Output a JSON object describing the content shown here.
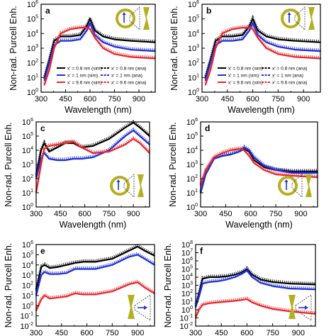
{
  "figure": {
    "ylabel": "Non-rad. Purcell Enh.",
    "xlabel": "Wavelength (nm)"
  },
  "legend": [
    {
      "label": "x' = 0.8 nm (sim)",
      "color": "#000000",
      "style": "solid"
    },
    {
      "label": "x' = 0.8 nm (ana)",
      "color": "#000000",
      "style": "dashed"
    },
    {
      "label": "x' = 1 nm (sim)",
      "color": "#1f2fd8",
      "style": "solid"
    },
    {
      "label": "x' = 1 nm (ana)",
      "color": "#1f2fd8",
      "style": "dashed"
    },
    {
      "label": "x' = 9.6 nm (sim)",
      "color": "#e8262b",
      "style": "solid"
    },
    {
      "label": "x' = 9.6 nm (ana)",
      "color": "#e8262b",
      "style": "dashed"
    }
  ],
  "chart_data": [
    {
      "panel": "a",
      "type": "line",
      "x_ticks": [
        300,
        450,
        600,
        750,
        900
      ],
      "xlim": [
        300,
        1000
      ],
      "y_tick_exponents": [
        0,
        1,
        2,
        3,
        4,
        5,
        6
      ],
      "ylim_exp": [
        0,
        6
      ],
      "yscale": "log",
      "icon": "ring-bowtie",
      "series": [
        {
          "name": "x' = 0.8 nm",
          "color": "#000000",
          "x": [
            320,
            350,
            380,
            420,
            480,
            540,
            580,
            600,
            630,
            680,
            750,
            850,
            1000
          ],
          "log_y": [
            1.0,
            2.2,
            3.5,
            3.8,
            3.8,
            3.9,
            4.5,
            5.0,
            4.2,
            3.8,
            3.6,
            3.5,
            3.4
          ]
        },
        {
          "name": "x' = 1 nm",
          "color": "#1f2fd8",
          "x": [
            320,
            350,
            380,
            420,
            480,
            540,
            580,
            600,
            630,
            680,
            750,
            850,
            1000
          ],
          "log_y": [
            0.8,
            2.0,
            3.2,
            3.5,
            3.5,
            3.6,
            4.2,
            4.7,
            3.9,
            3.4,
            3.1,
            2.9,
            2.8
          ]
        },
        {
          "name": "x' = 9.6 nm",
          "color": "#e8262b",
          "x": [
            320,
            350,
            380,
            420,
            480,
            540,
            580,
            600,
            630,
            680,
            750,
            850,
            1000
          ],
          "log_y": [
            0.5,
            1.5,
            3.0,
            4.0,
            4.3,
            4.4,
            4.4,
            4.3,
            3.7,
            3.0,
            2.6,
            2.4,
            2.3
          ]
        }
      ]
    },
    {
      "panel": "b",
      "type": "line",
      "x_ticks": [
        300,
        450,
        600,
        750,
        900
      ],
      "xlim": [
        300,
        1000
      ],
      "y_tick_exponents": [
        0,
        1,
        2,
        3,
        4,
        5,
        6
      ],
      "ylim_exp": [
        0,
        6
      ],
      "yscale": "log",
      "icon": "ring-bowtie",
      "series": [
        {
          "name": "x' = 0.8 nm",
          "color": "#000000",
          "x": [
            320,
            350,
            380,
            420,
            480,
            540,
            580,
            600,
            630,
            680,
            750,
            850,
            1000
          ],
          "log_y": [
            1.0,
            2.2,
            3.5,
            3.8,
            3.8,
            3.9,
            4.5,
            5.0,
            4.2,
            3.8,
            3.6,
            3.5,
            3.4
          ]
        },
        {
          "name": "x' = 1 nm",
          "color": "#1f2fd8",
          "x": [
            320,
            350,
            380,
            420,
            480,
            540,
            580,
            600,
            630,
            680,
            750,
            850,
            1000
          ],
          "log_y": [
            0.8,
            2.0,
            3.2,
            3.5,
            3.5,
            3.6,
            4.2,
            4.7,
            3.9,
            3.4,
            3.1,
            2.9,
            2.8
          ]
        },
        {
          "name": "x' = 9.6 nm",
          "color": "#e8262b",
          "x": [
            320,
            350,
            380,
            420,
            480,
            540,
            580,
            600,
            630,
            680,
            750,
            850,
            1000
          ],
          "log_y": [
            0.5,
            1.5,
            3.0,
            4.0,
            4.3,
            4.4,
            4.4,
            4.3,
            3.7,
            3.0,
            2.6,
            2.4,
            2.3
          ]
        }
      ]
    },
    {
      "panel": "c",
      "type": "line",
      "x_ticks": [
        300,
        450,
        600,
        750,
        900
      ],
      "xlim": [
        300,
        1000
      ],
      "y_tick_exponents": [
        0,
        1,
        2,
        3,
        4,
        5,
        6
      ],
      "ylim_exp": [
        0,
        6
      ],
      "yscale": "log",
      "icon": "ring-bowtie",
      "series": [
        {
          "name": "x' = 0.8 nm",
          "color": "#000000",
          "x": [
            300,
            330,
            350,
            380,
            430,
            480,
            530,
            580,
            650,
            750,
            850,
            900,
            940,
            1000
          ],
          "log_y": [
            2.2,
            4.0,
            4.5,
            3.9,
            4.2,
            4.5,
            4.5,
            4.2,
            4.3,
            4.8,
            5.6,
            6.0,
            5.6,
            5.0
          ]
        },
        {
          "name": "x' = 1 nm",
          "color": "#1f2fd8",
          "x": [
            300,
            330,
            350,
            380,
            430,
            480,
            530,
            580,
            650,
            750,
            850,
            900,
            940,
            1000
          ],
          "log_y": [
            2.0,
            3.4,
            3.8,
            3.4,
            3.3,
            3.3,
            3.4,
            3.4,
            3.5,
            4.0,
            5.0,
            5.4,
            5.0,
            4.4
          ]
        },
        {
          "name": "x' = 9.6 nm",
          "color": "#e8262b",
          "x": [
            300,
            330,
            350,
            380,
            430,
            480,
            530,
            580,
            650,
            750,
            850,
            900,
            940,
            1000
          ],
          "log_y": [
            1.0,
            3.0,
            4.1,
            4.3,
            4.4,
            4.5,
            4.6,
            4.2,
            3.8,
            3.9,
            4.4,
            4.8,
            4.5,
            3.8
          ]
        }
      ]
    },
    {
      "panel": "d",
      "type": "line",
      "x_ticks": [
        300,
        450,
        600,
        750,
        900
      ],
      "xlim": [
        300,
        1000
      ],
      "y_tick_exponents": [
        0,
        1,
        2,
        3,
        4,
        5,
        6
      ],
      "ylim_exp": [
        0,
        6
      ],
      "yscale": "log",
      "icon": "ring-bowtie",
      "series": [
        {
          "name": "x' = 0.8 nm",
          "color": "#000000",
          "x": [
            300,
            330,
            380,
            430,
            480,
            530,
            560,
            590,
            620,
            680,
            750,
            850,
            1000
          ],
          "log_y": [
            1.0,
            2.3,
            3.4,
            3.6,
            3.7,
            3.9,
            4.1,
            3.9,
            3.3,
            2.8,
            2.6,
            2.5,
            2.5
          ]
        },
        {
          "name": "x' = 1 nm",
          "color": "#1f2fd8",
          "x": [
            300,
            330,
            380,
            430,
            480,
            530,
            560,
            590,
            620,
            680,
            750,
            850,
            1000
          ],
          "log_y": [
            1.0,
            2.3,
            3.4,
            3.6,
            3.7,
            3.9,
            4.2,
            4.0,
            3.5,
            2.9,
            2.6,
            2.4,
            2.4
          ]
        },
        {
          "name": "x' = 9.6 nm",
          "color": "#e8262b",
          "x": [
            300,
            330,
            380,
            430,
            480,
            530,
            560,
            590,
            620,
            680,
            750,
            850,
            1000
          ],
          "log_y": [
            1.5,
            2.6,
            3.5,
            3.8,
            4.0,
            4.1,
            4.0,
            3.6,
            3.1,
            2.6,
            2.3,
            2.2,
            2.1
          ]
        }
      ]
    },
    {
      "panel": "e",
      "type": "line",
      "x_ticks": [
        300,
        450,
        600,
        750,
        900
      ],
      "xlim": [
        300,
        1000
      ],
      "y_tick_exponents": [
        -2,
        -1,
        0,
        1,
        2,
        3,
        4,
        5,
        6
      ],
      "ylim_exp": [
        -2,
        6
      ],
      "yscale": "log",
      "icon": "bowtie",
      "series": [
        {
          "name": "x' = 0.8 nm",
          "color": "#000000",
          "x": [
            300,
            330,
            350,
            380,
            430,
            480,
            530,
            580,
            650,
            750,
            850,
            900,
            940,
            1000
          ],
          "log_y": [
            1.5,
            3.8,
            4.0,
            3.7,
            3.8,
            4.0,
            4.2,
            4.3,
            4.3,
            4.6,
            5.4,
            5.8,
            5.4,
            4.9
          ]
        },
        {
          "name": "x' = 1 nm",
          "color": "#1f2fd8",
          "x": [
            300,
            330,
            350,
            380,
            430,
            480,
            530,
            580,
            650,
            750,
            850,
            900,
            940,
            1000
          ],
          "log_y": [
            1.0,
            3.0,
            3.3,
            3.1,
            3.1,
            3.2,
            3.6,
            3.6,
            3.6,
            4.0,
            4.8,
            5.0,
            4.6,
            4.0
          ]
        },
        {
          "name": "x' = 9.6 nm",
          "color": "#e8262b",
          "x": [
            300,
            330,
            350,
            380,
            430,
            480,
            530,
            580,
            650,
            750,
            850,
            900,
            940,
            1000
          ],
          "log_y": [
            -0.5,
            0.6,
            1.0,
            0.7,
            0.8,
            0.9,
            1.2,
            1.1,
            1.1,
            1.4,
            2.1,
            2.3,
            1.8,
            1.2
          ]
        }
      ]
    },
    {
      "panel": "f",
      "type": "line",
      "x_ticks": [
        300,
        450,
        600,
        750,
        900
      ],
      "xlim": [
        300,
        1000
      ],
      "y_tick_exponents": [
        -2,
        -1,
        0,
        1,
        2,
        3,
        4,
        5,
        6,
        7,
        8
      ],
      "ylim_exp": [
        -2,
        8
      ],
      "yscale": "log",
      "icon": "bowtie",
      "series": [
        {
          "name": "x' = 0.8 nm",
          "color": "#000000",
          "x": [
            300,
            320,
            340,
            380,
            430,
            480,
            530,
            570,
            600,
            630,
            680,
            750,
            850,
            1000
          ],
          "log_y": [
            0.5,
            2.0,
            3.8,
            4.0,
            4.0,
            4.1,
            4.3,
            4.6,
            5.0,
            4.3,
            3.7,
            3.4,
            3.2,
            3.1
          ]
        },
        {
          "name": "x' = 1 nm",
          "color": "#1f2fd8",
          "x": [
            300,
            320,
            340,
            380,
            430,
            480,
            530,
            570,
            600,
            630,
            680,
            750,
            850,
            1000
          ],
          "log_y": [
            0.3,
            1.6,
            3.2,
            3.4,
            3.5,
            3.7,
            4.0,
            4.4,
            4.8,
            4.0,
            3.3,
            2.9,
            2.6,
            2.5
          ]
        },
        {
          "name": "x' = 9.6 nm",
          "color": "#e8262b",
          "x": [
            300,
            320,
            340,
            380,
            430,
            480,
            530,
            570,
            600,
            630,
            680,
            750,
            850,
            1000
          ],
          "log_y": [
            -1.0,
            0.0,
            0.6,
            0.8,
            0.9,
            1.0,
            1.1,
            1.2,
            1.3,
            0.9,
            0.5,
            0.1,
            -0.2,
            -0.5
          ]
        }
      ]
    }
  ]
}
